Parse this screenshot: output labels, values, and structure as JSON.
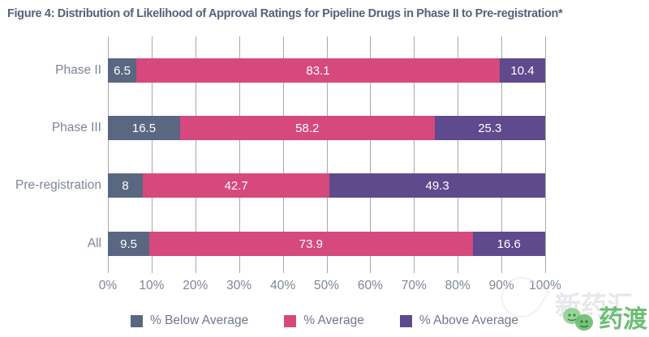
{
  "title": "Figure 4: Distribution of Likelihood of Approval Ratings for Pipeline Drugs in Phase II to Pre-registration*",
  "chart_data": {
    "type": "bar",
    "variant": "horizontal-stacked",
    "title": "Figure 4: Distribution of Likelihood of Approval Ratings for Pipeline Drugs in Phase II to Pre-registration*",
    "categories": [
      "Phase II",
      "Phase III",
      "Pre-registration",
      "All"
    ],
    "series": [
      {
        "name": "% Below Average",
        "color": "#5a6781",
        "values": [
          6.5,
          16.5,
          8,
          9.5
        ],
        "labels": [
          "6.5",
          "16.5",
          "8",
          "9.5"
        ]
      },
      {
        "name": "% Average",
        "color": "#d6497d",
        "values": [
          83.1,
          58.2,
          42.7,
          73.9
        ],
        "labels": [
          "83.1",
          "58.2",
          "42.7",
          "73.9"
        ]
      },
      {
        "name": "% Above Average",
        "color": "#5e4a8c",
        "values": [
          10.4,
          25.3,
          49.3,
          16.6
        ],
        "labels": [
          "10.4",
          "25.3",
          "49.3",
          "16.6"
        ]
      }
    ],
    "x_ticks": [
      "0%",
      "10%",
      "20%",
      "30%",
      "40%",
      "50%",
      "60%",
      "70%",
      "80%",
      "90%",
      "100%"
    ],
    "xlim": [
      0,
      100
    ],
    "xlabel": "",
    "ylabel": "",
    "grid": "vertical",
    "legend_position": "bottom"
  },
  "colors": {
    "title_text": "#56627a",
    "axis_text": "#7d8597",
    "gridline": "#a9a9a9",
    "bar_value_text": "#ffffff",
    "watermark_green": "#53b35d"
  },
  "watermark": {
    "background_text": "新药汇",
    "logo_text": "药渡"
  }
}
